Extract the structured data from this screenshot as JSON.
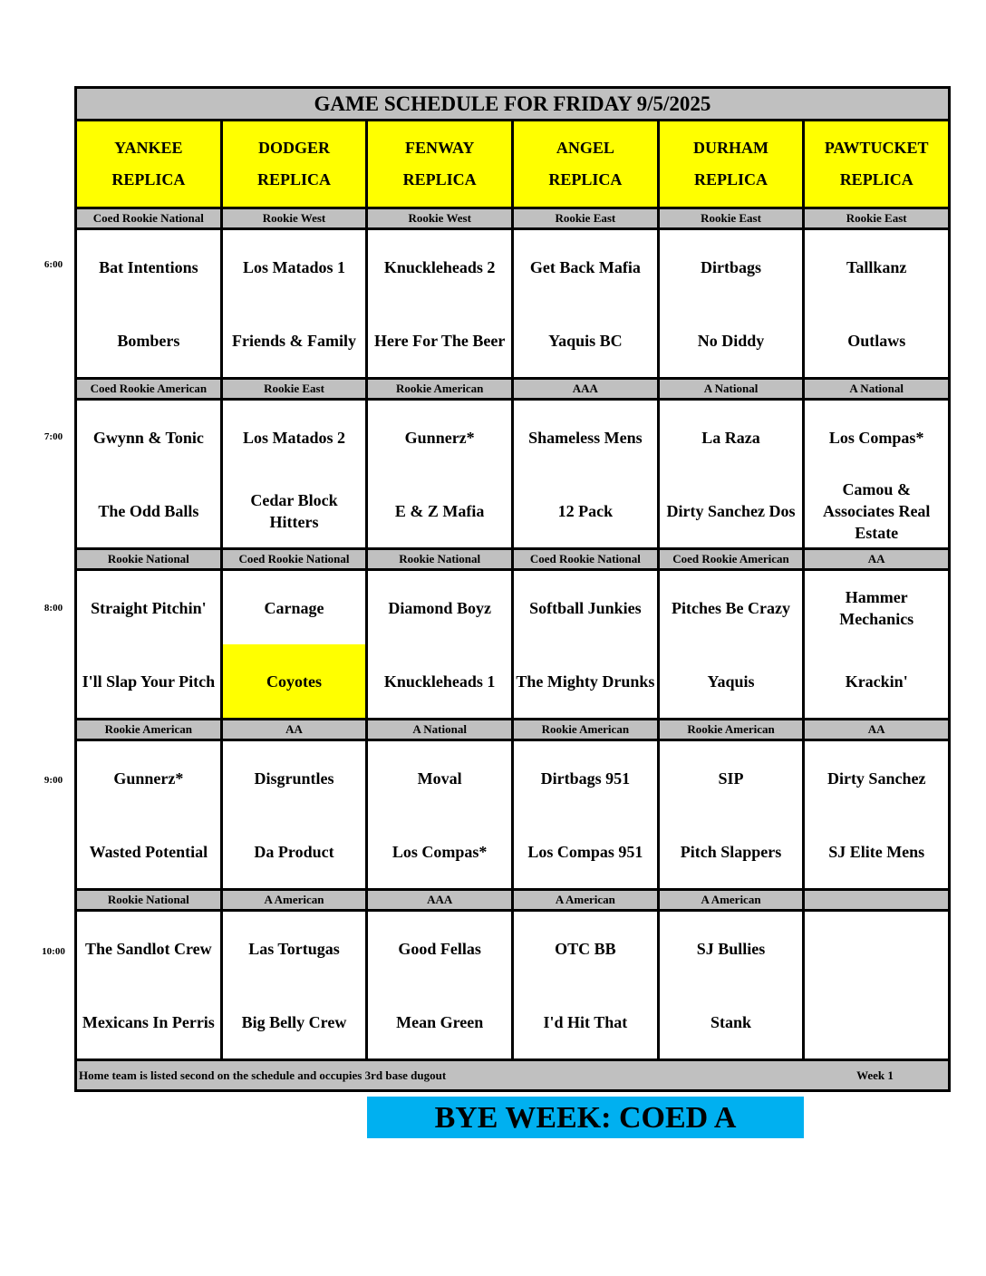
{
  "title": "GAME SCHEDULE FOR FRIDAY 9/5/2025",
  "fields": [
    {
      "line1": "YANKEE",
      "line2": "REPLICA"
    },
    {
      "line1": "DODGER",
      "line2": "REPLICA"
    },
    {
      "line1": "FENWAY",
      "line2": "REPLICA"
    },
    {
      "line1": "ANGEL",
      "line2": "REPLICA"
    },
    {
      "line1": "DURHAM",
      "line2": "REPLICA"
    },
    {
      "line1": "PAWTUCKET",
      "line2": "REPLICA"
    }
  ],
  "highlight_color": "#ffff00",
  "slots": [
    {
      "time": "6:00",
      "games": [
        {
          "division": "Coed Rookie National",
          "away": "Bat Intentions",
          "home": "Bombers"
        },
        {
          "division": "Rookie West",
          "away": "Los Matados 1",
          "home": "Friends & Family"
        },
        {
          "division": "Rookie West",
          "away": "Knuckleheads 2",
          "home": "Here For The Beer"
        },
        {
          "division": "Rookie East",
          "away": "Get Back Mafia",
          "home": "Yaquis BC"
        },
        {
          "division": "Rookie East",
          "away": "Dirtbags",
          "home": "No Diddy"
        },
        {
          "division": "Rookie East",
          "away": "Tallkanz",
          "home": "Outlaws"
        }
      ]
    },
    {
      "time": "7:00",
      "games": [
        {
          "division": "Coed Rookie American",
          "away": "Gwynn & Tonic",
          "home": "The Odd Balls"
        },
        {
          "division": "Rookie East",
          "away": "Los Matados 2",
          "home": "Cedar Block Hitters"
        },
        {
          "division": "Rookie American",
          "away": "Gunnerz*",
          "home": "E & Z Mafia"
        },
        {
          "division": "AAA",
          "away": "Shameless Mens",
          "home": "12 Pack"
        },
        {
          "division": "A National",
          "away": "La Raza",
          "home": "Dirty Sanchez Dos"
        },
        {
          "division": "A National",
          "away": "Los Compas*",
          "home": "Camou & Associates Real Estate"
        }
      ]
    },
    {
      "time": "8:00",
      "games": [
        {
          "division": "Rookie National",
          "away": "Straight Pitchin'",
          "home": "I'll Slap Your Pitch"
        },
        {
          "division": "Coed Rookie National",
          "away": "Carnage",
          "home": "Coyotes",
          "home_highlight": true
        },
        {
          "division": "Rookie National",
          "away": "Diamond Boyz",
          "home": "Knuckleheads 1"
        },
        {
          "division": "Coed Rookie National",
          "away": "Softball Junkies",
          "home": "The Mighty Drunks"
        },
        {
          "division": "Coed Rookie American",
          "away": "Pitches Be Crazy",
          "home": "Yaquis"
        },
        {
          "division": "AA",
          "away": "Hammer Mechanics",
          "home": "Krackin'"
        }
      ]
    },
    {
      "time": "9:00",
      "games": [
        {
          "division": "Rookie American",
          "away": "Gunnerz*",
          "home": "Wasted Potential"
        },
        {
          "division": "AA",
          "away": "Disgruntles",
          "home": "Da Product"
        },
        {
          "division": "A National",
          "away": "Moval",
          "home": "Los Compas*"
        },
        {
          "division": "Rookie American",
          "away": "Dirtbags 951",
          "home": "Los Compas 951"
        },
        {
          "division": "Rookie American",
          "away": "SIP",
          "home": "Pitch Slappers"
        },
        {
          "division": "AA",
          "away": "Dirty Sanchez",
          "home": "SJ Elite Mens"
        }
      ]
    },
    {
      "time": "10:00",
      "games": [
        {
          "division": "Rookie National",
          "away": "The Sandlot Crew",
          "home": "Mexicans In Perris"
        },
        {
          "division": "A American",
          "away": "Las Tortugas",
          "home": "Big Belly Crew"
        },
        {
          "division": "AAA",
          "away": "Good Fellas",
          "home": "Mean Green"
        },
        {
          "division": "A American",
          "away": "OTC BB",
          "home": "I'd Hit That"
        },
        {
          "division": "A American",
          "away": "SJ Bullies",
          "home": "Stank"
        },
        {
          "division": "",
          "away": "",
          "home": ""
        }
      ]
    }
  ],
  "footer": {
    "note": "Home team is listed second on the schedule and occupies 3rd base dugout",
    "week": "Week 1"
  },
  "bye": {
    "text": "BYE WEEK: COED A",
    "color": "#00b0f0"
  }
}
